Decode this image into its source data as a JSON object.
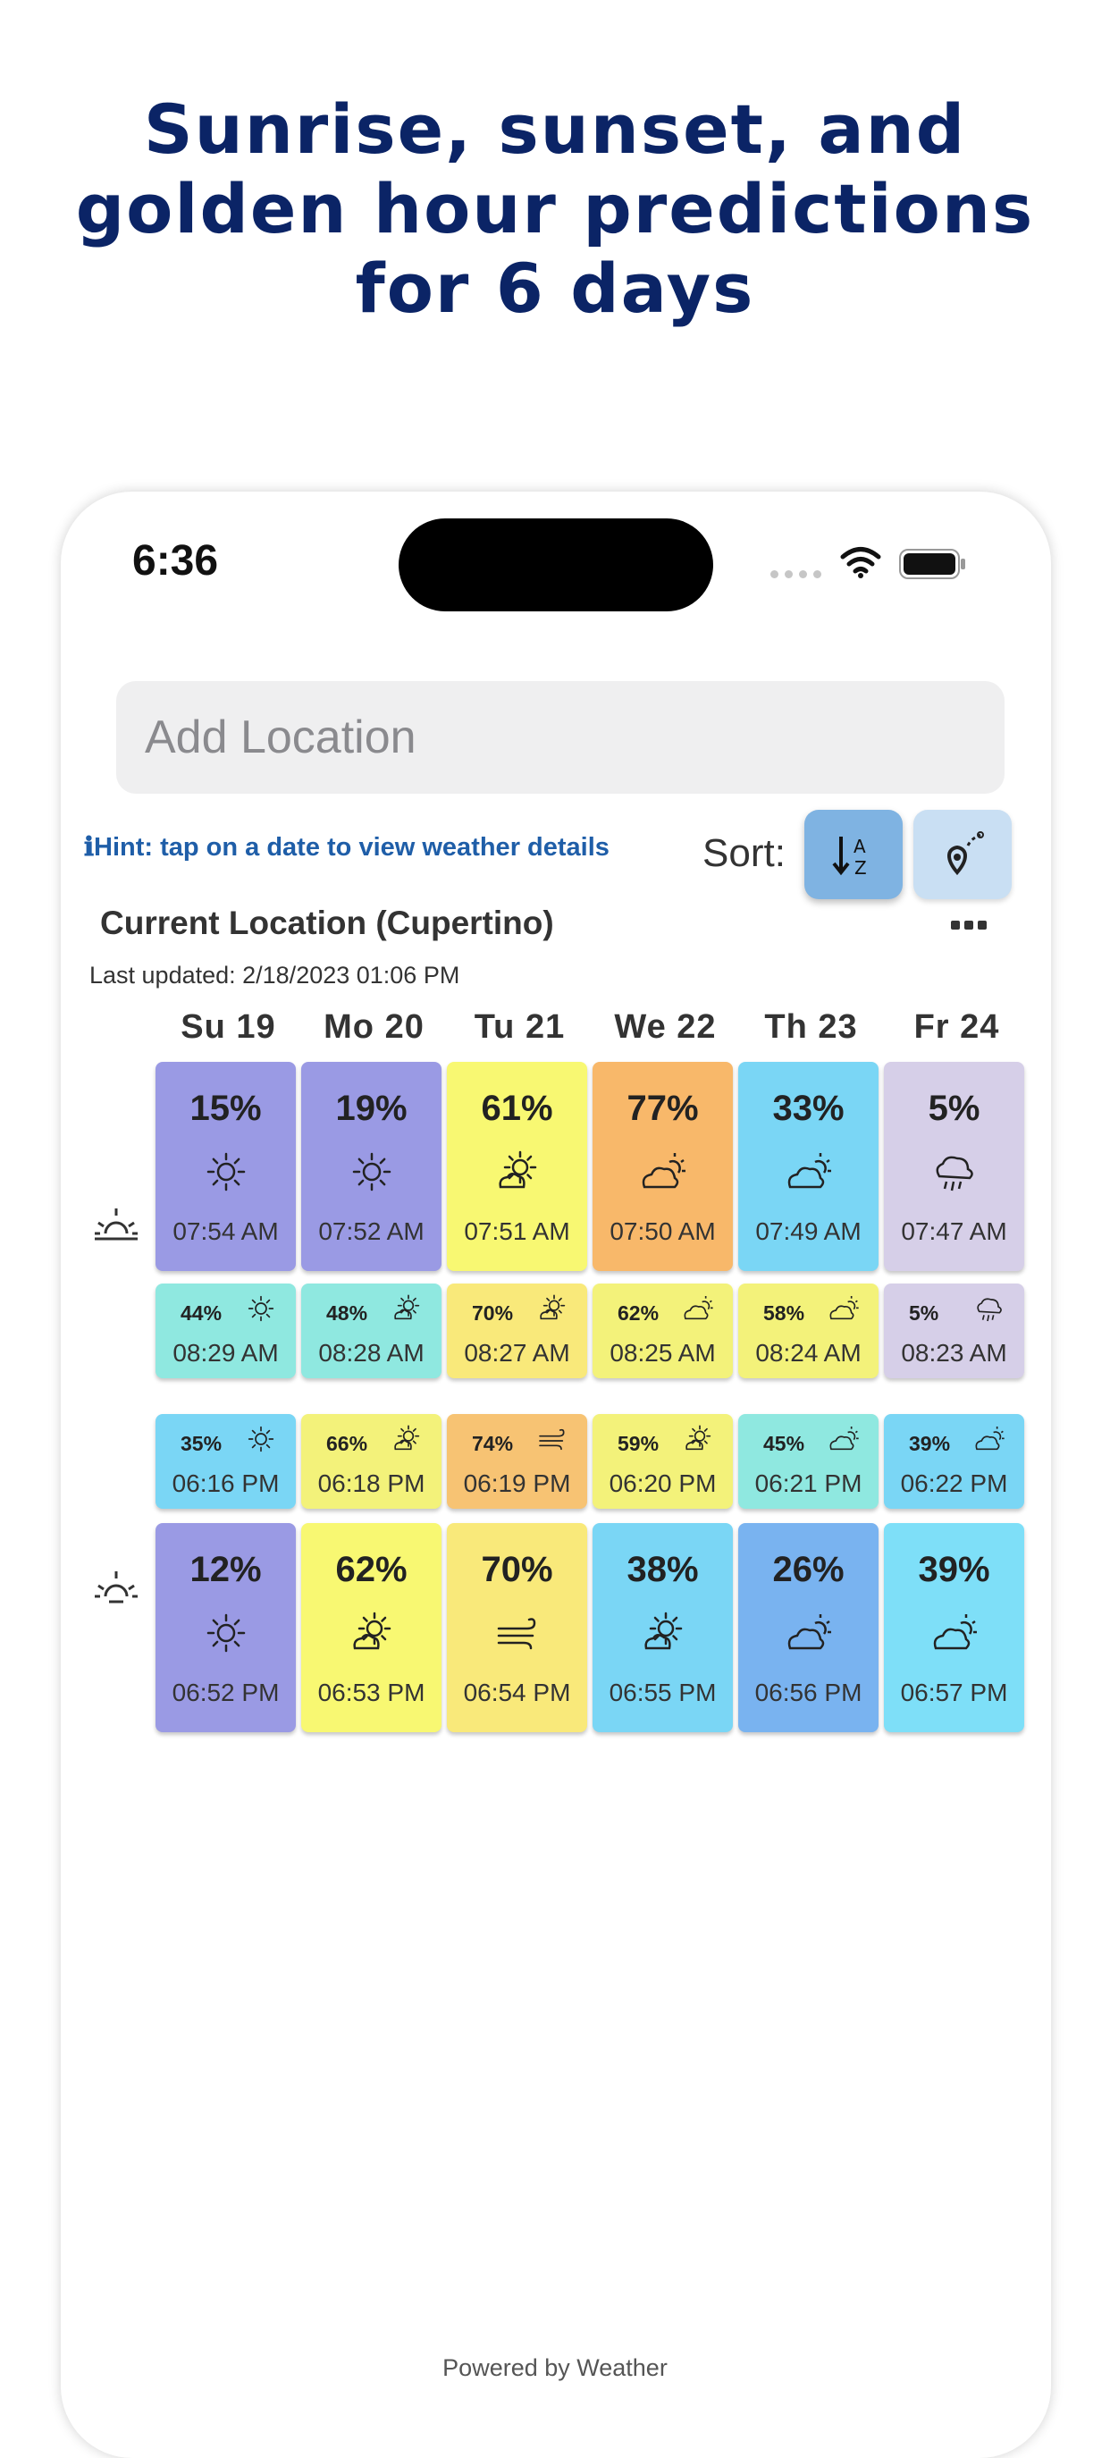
{
  "headline": {
    "line1": "Sunrise, sunset, and",
    "line2": "golden hour predictions",
    "line3": "for 6 days"
  },
  "status_bar": {
    "time": "6:36"
  },
  "search": {
    "placeholder": "Add Location"
  },
  "hint": "ℹHint: tap on a date to view weather details",
  "sort": {
    "label": "Sort:",
    "az_icon": "sort-az-icon",
    "location_icon": "location-pin-icon"
  },
  "location": {
    "title": "Current Location (Cupertino)",
    "more_icon": "more-icon"
  },
  "last_updated": "Last updated: 2/18/2023 01:06 PM",
  "days": [
    "Su  19",
    "Mo  20",
    "Tu  21",
    "We  22",
    "Th  23",
    "Fr  24"
  ],
  "colors": {
    "purple": "#9a9ae4",
    "yellow": "#f8f872",
    "orange": "#f8b86a",
    "sky": "#7ad6f5",
    "teal": "#8fe8e0",
    "lavender": "#d6cfe8",
    "yellow_light": "#f3f27a",
    "orange_light": "#f7c373",
    "gold": "#f9e97a",
    "blue": "#79b3f0",
    "cyan": "#7edff8"
  },
  "sunrise": [
    {
      "pct": "15%",
      "time": "07:54 AM",
      "icon": "sun-icon",
      "color": "#9a9ae4"
    },
    {
      "pct": "19%",
      "time": "07:52 AM",
      "icon": "sun-icon",
      "color": "#9a9ae4"
    },
    {
      "pct": "61%",
      "time": "07:51 AM",
      "icon": "partly-sunny-icon",
      "color": "#f8f872"
    },
    {
      "pct": "77%",
      "time": "07:50 AM",
      "icon": "cloudy-sun-icon",
      "color": "#f8b86a"
    },
    {
      "pct": "33%",
      "time": "07:49 AM",
      "icon": "cloudy-sun-icon",
      "color": "#7ad6f5"
    },
    {
      "pct": "5%",
      "time": "07:47 AM",
      "icon": "rain-icon",
      "color": "#d6cfe8"
    }
  ],
  "golden_morning": [
    {
      "pct": "44%",
      "time": "08:29 AM",
      "icon": "sun-icon",
      "color": "#8fe8e0"
    },
    {
      "pct": "48%",
      "time": "08:28 AM",
      "icon": "partly-sunny-icon",
      "color": "#8fe8e0"
    },
    {
      "pct": "70%",
      "time": "08:27 AM",
      "icon": "partly-sunny-icon",
      "color": "#f9e97a"
    },
    {
      "pct": "62%",
      "time": "08:25 AM",
      "icon": "cloudy-sun-icon",
      "color": "#f3f27a"
    },
    {
      "pct": "58%",
      "time": "08:24 AM",
      "icon": "cloudy-sun-icon",
      "color": "#f3f27a"
    },
    {
      "pct": "5%",
      "time": "08:23 AM",
      "icon": "rain-icon",
      "color": "#d6cfe8"
    }
  ],
  "golden_evening": [
    {
      "pct": "35%",
      "time": "06:16 PM",
      "icon": "sun-icon",
      "color": "#7ad6f5"
    },
    {
      "pct": "66%",
      "time": "06:18 PM",
      "icon": "partly-sunny-icon",
      "color": "#f3f27a"
    },
    {
      "pct": "74%",
      "time": "06:19 PM",
      "icon": "wind-icon",
      "color": "#f7c373"
    },
    {
      "pct": "59%",
      "time": "06:20 PM",
      "icon": "partly-sunny-icon",
      "color": "#f3f27a"
    },
    {
      "pct": "45%",
      "time": "06:21 PM",
      "icon": "cloudy-sun-icon",
      "color": "#8fe8e0"
    },
    {
      "pct": "39%",
      "time": "06:22 PM",
      "icon": "cloudy-sun-icon",
      "color": "#7ad6f5"
    }
  ],
  "sunset": [
    {
      "pct": "12%",
      "time": "06:52 PM",
      "icon": "sun-icon",
      "color": "#9a9ae4"
    },
    {
      "pct": "62%",
      "time": "06:53 PM",
      "icon": "partly-sunny-icon",
      "color": "#f8f872"
    },
    {
      "pct": "70%",
      "time": "06:54 PM",
      "icon": "wind-icon",
      "color": "#f9e97a"
    },
    {
      "pct": "38%",
      "time": "06:55 PM",
      "icon": "partly-sunny-icon",
      "color": "#7ad6f5"
    },
    {
      "pct": "26%",
      "time": "06:56 PM",
      "icon": "cloudy-sun-icon",
      "color": "#79b3f0"
    },
    {
      "pct": "39%",
      "time": "06:57 PM",
      "icon": "cloudy-sun-icon",
      "color": "#7edff8"
    }
  ],
  "side_icons": {
    "sunrise": "sunrise-icon",
    "sunset": "sunset-icon"
  },
  "footer": "Powered by  Weather"
}
